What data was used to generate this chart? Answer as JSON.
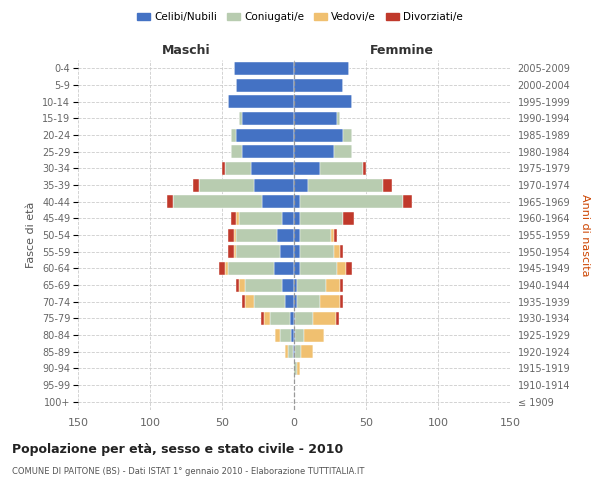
{
  "age_groups": [
    "100+",
    "95-99",
    "90-94",
    "85-89",
    "80-84",
    "75-79",
    "70-74",
    "65-69",
    "60-64",
    "55-59",
    "50-54",
    "45-49",
    "40-44",
    "35-39",
    "30-34",
    "25-29",
    "20-24",
    "15-19",
    "10-14",
    "5-9",
    "0-4"
  ],
  "birth_years": [
    "≤ 1909",
    "1910-1914",
    "1915-1919",
    "1920-1924",
    "1925-1929",
    "1930-1934",
    "1935-1939",
    "1940-1944",
    "1945-1949",
    "1950-1954",
    "1955-1959",
    "1960-1964",
    "1965-1969",
    "1970-1974",
    "1975-1979",
    "1980-1984",
    "1985-1989",
    "1990-1994",
    "1995-1999",
    "2000-2004",
    "2005-2009"
  ],
  "colors": {
    "celibe": "#4472C4",
    "coniugato": "#B8CCB0",
    "vedovo": "#F0C070",
    "divorziato": "#C0392B"
  },
  "maschi": {
    "celibe": [
      0,
      0,
      0,
      1,
      2,
      3,
      6,
      8,
      14,
      10,
      12,
      8,
      22,
      28,
      30,
      36,
      40,
      36,
      46,
      40,
      42
    ],
    "coniugato": [
      0,
      0,
      0,
      3,
      8,
      14,
      22,
      26,
      32,
      30,
      28,
      30,
      62,
      38,
      18,
      8,
      4,
      2,
      0,
      0,
      0
    ],
    "vedovo": [
      0,
      0,
      0,
      2,
      3,
      4,
      6,
      4,
      2,
      2,
      2,
      2,
      0,
      0,
      0,
      0,
      0,
      0,
      0,
      0,
      0
    ],
    "divorziato": [
      0,
      0,
      0,
      0,
      0,
      2,
      2,
      2,
      4,
      4,
      4,
      4,
      4,
      4,
      2,
      0,
      0,
      0,
      0,
      0,
      0
    ]
  },
  "femmine": {
    "nubile": [
      0,
      0,
      0,
      1,
      1,
      1,
      2,
      2,
      4,
      4,
      4,
      4,
      4,
      10,
      18,
      28,
      34,
      30,
      40,
      34,
      38
    ],
    "coniugata": [
      0,
      0,
      2,
      4,
      6,
      12,
      16,
      20,
      26,
      24,
      22,
      30,
      72,
      52,
      30,
      12,
      6,
      2,
      0,
      0,
      0
    ],
    "vedova": [
      0,
      0,
      2,
      8,
      14,
      16,
      14,
      10,
      6,
      4,
      2,
      0,
      0,
      0,
      0,
      0,
      0,
      0,
      0,
      0,
      0
    ],
    "divorziata": [
      0,
      0,
      0,
      0,
      0,
      2,
      2,
      2,
      4,
      2,
      2,
      8,
      6,
      6,
      2,
      0,
      0,
      0,
      0,
      0,
      0
    ]
  },
  "xlim": 150,
  "title": "Popolazione per età, sesso e stato civile - 2010",
  "subtitle": "COMUNE DI PAITONE (BS) - Dati ISTAT 1° gennaio 2010 - Elaborazione TUTTITALIA.IT",
  "ylabel_left": "Fasce di età",
  "ylabel_right": "Anni di nascita",
  "xlabel_left": "Maschi",
  "xlabel_right": "Femmine",
  "legend_labels": [
    "Celibi/Nubili",
    "Coniugati/e",
    "Vedovi/e",
    "Divorziati/e"
  ],
  "background_color": "#ffffff",
  "grid_color": "#cccccc"
}
